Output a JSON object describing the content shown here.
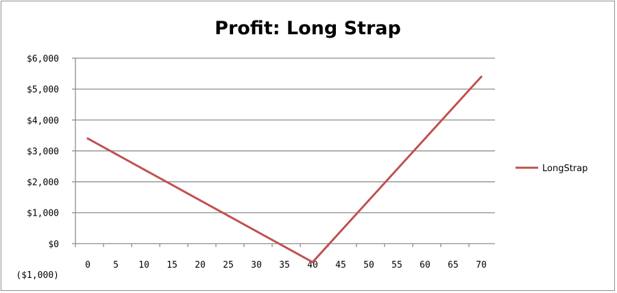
{
  "chart_data": {
    "type": "line",
    "title": "Profit: Long Strap",
    "xlabel": "",
    "ylabel": "",
    "x": [
      0,
      5,
      10,
      15,
      20,
      25,
      30,
      35,
      40,
      45,
      50,
      55,
      60,
      65,
      70
    ],
    "ylim": [
      -1000,
      6000
    ],
    "y_ticks": [
      {
        "value": 6000,
        "label": "$6,000"
      },
      {
        "value": 5000,
        "label": "$5,000"
      },
      {
        "value": 4000,
        "label": "$4,000"
      },
      {
        "value": 3000,
        "label": "$3,000"
      },
      {
        "value": 2000,
        "label": "$2,000"
      },
      {
        "value": 1000,
        "label": "$1,000"
      },
      {
        "value": 0,
        "label": "$0"
      },
      {
        "value": -1000,
        "label": "($1,000)"
      }
    ],
    "series": [
      {
        "name": "LongStrap",
        "color": "#c0504d",
        "values": [
          3400,
          2900,
          2400,
          1900,
          1400,
          900,
          400,
          -100,
          -600,
          400,
          1400,
          2400,
          3400,
          4400,
          5400
        ]
      }
    ],
    "grid": true,
    "legend_position": "right",
    "negative_label_color": "#ff0000"
  }
}
